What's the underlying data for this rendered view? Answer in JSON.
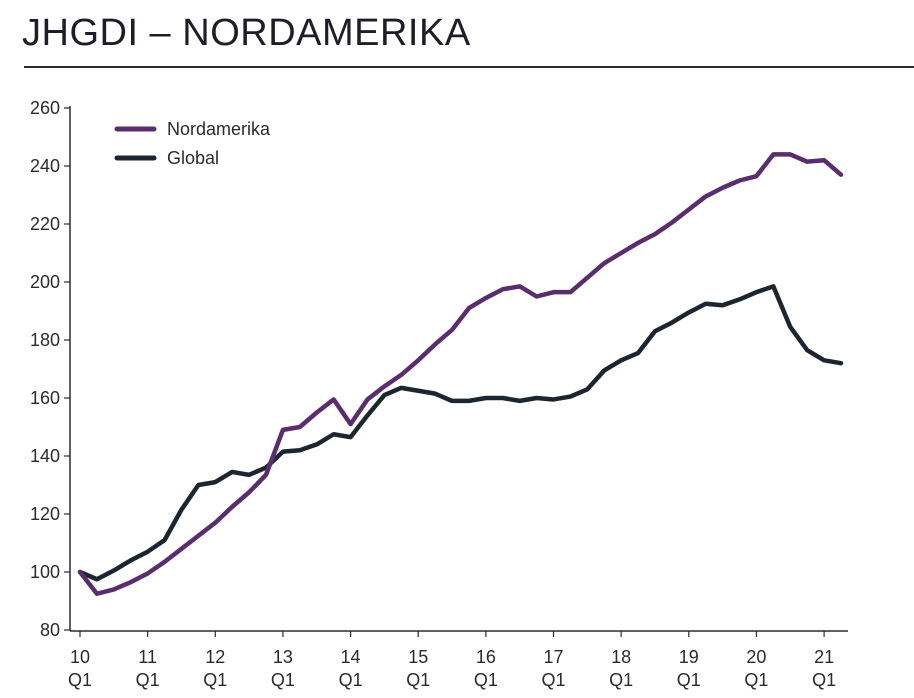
{
  "page": {
    "title": "JHGDI – NORDAMERIKA"
  },
  "chart_data": {
    "type": "line",
    "title": "JHGDI – NORDAMERIKA",
    "xlabel": "",
    "ylabel": "",
    "ylim": [
      80,
      260
    ],
    "yticks": [
      80,
      100,
      120,
      140,
      160,
      180,
      200,
      220,
      240,
      260
    ],
    "grid": false,
    "legend_position": "top-left",
    "x_tick_labels": [
      {
        "index": 0,
        "year": "10",
        "quarter": "Q1"
      },
      {
        "index": 4,
        "year": "11",
        "quarter": "Q1"
      },
      {
        "index": 8,
        "year": "12",
        "quarter": "Q1"
      },
      {
        "index": 12,
        "year": "13",
        "quarter": "Q1"
      },
      {
        "index": 16,
        "year": "14",
        "quarter": "Q1"
      },
      {
        "index": 20,
        "year": "15",
        "quarter": "Q1"
      },
      {
        "index": 24,
        "year": "16",
        "quarter": "Q1"
      },
      {
        "index": 28,
        "year": "17",
        "quarter": "Q1"
      },
      {
        "index": 32,
        "year": "18",
        "quarter": "Q1"
      },
      {
        "index": 36,
        "year": "19",
        "quarter": "Q1"
      },
      {
        "index": 40,
        "year": "20",
        "quarter": "Q1"
      },
      {
        "index": 44,
        "year": "21",
        "quarter": "Q1"
      }
    ],
    "series": [
      {
        "name": "Nordamerika",
        "color": "#5a2d6e",
        "values": [
          100,
          92.5,
          94,
          96.5,
          99.5,
          103.5,
          108,
          112.5,
          117,
          122.5,
          127.5,
          133.5,
          149,
          150,
          155,
          159.5,
          151,
          159.5,
          164,
          168,
          173,
          178.5,
          183.5,
          191,
          194.5,
          197.5,
          198.5,
          195,
          196.5,
          196.5,
          201.5,
          206.5,
          210,
          213.5,
          216.5,
          220.5,
          225,
          229.5,
          232.5,
          235,
          236.5,
          244,
          244,
          241.5,
          242,
          237
        ]
      },
      {
        "name": "Global",
        "color": "#1c2630",
        "values": [
          100,
          97.5,
          100.5,
          104,
          107,
          111,
          121.5,
          130,
          131,
          134.5,
          133.5,
          136,
          141.5,
          142,
          144,
          147.5,
          146.5,
          154,
          161,
          163.5,
          162.5,
          161.5,
          159,
          159,
          160,
          160,
          159,
          160,
          159.5,
          160.5,
          163,
          169.5,
          173,
          175.5,
          183,
          186,
          189.5,
          192.5,
          192,
          194,
          196.5,
          198.5,
          184.5,
          176.5,
          173,
          172
        ]
      }
    ]
  }
}
